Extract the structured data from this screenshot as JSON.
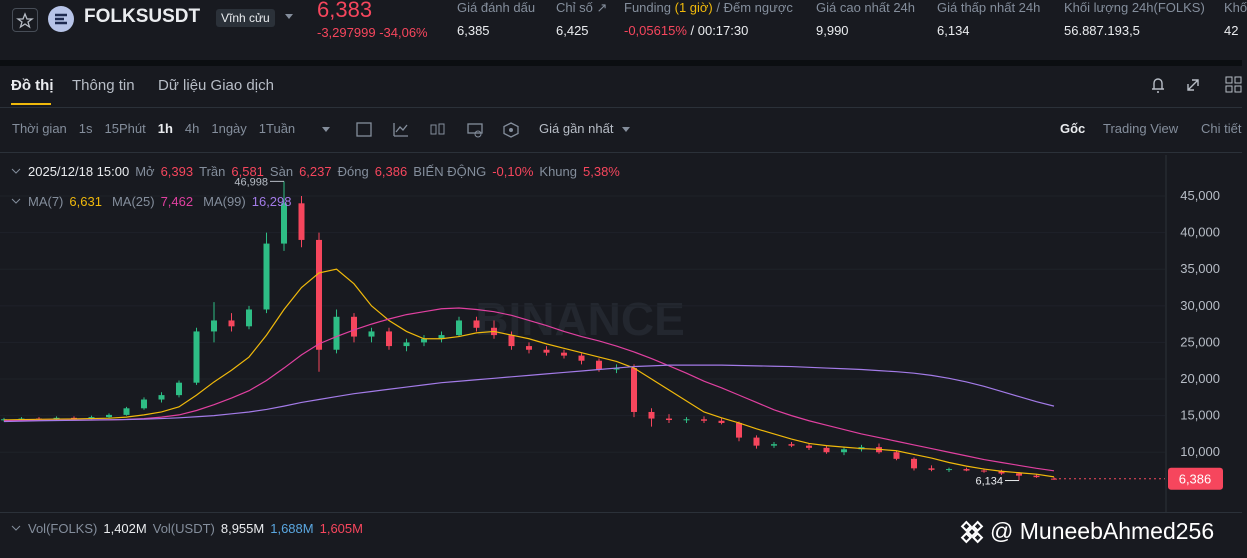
{
  "header": {
    "symbol": "FOLKSUSDT",
    "contract": "Vĩnh cửu",
    "price": "6,383",
    "change": "-3,297999",
    "change_pct": "-34,06%",
    "stats": [
      {
        "label": "Giá đánh dấu",
        "value": "6,385"
      },
      {
        "label": "Chỉ số ↗",
        "value": "6,425"
      },
      {
        "label": "Giá cao nhất 24h",
        "value": "9,990"
      },
      {
        "label": "Giá thấp nhất 24h",
        "value": "6,134"
      },
      {
        "label": "Khối lượng 24h(FOLKS)",
        "value": "56.887.193,5"
      },
      {
        "label": "Khố",
        "value": "42"
      }
    ],
    "funding": {
      "label": "Funding",
      "highlight": "(1 giờ)",
      "label_rest": "/ Đếm ngược",
      "rate": "-0,05615%",
      "countdown": "/ 00:17:30"
    }
  },
  "tabs": [
    "Đồ thị",
    "Thông tin",
    "Dữ liệu Giao dịch"
  ],
  "toolbar": {
    "intervals": [
      "Thời gian",
      "1s",
      "15Phút",
      "1h",
      "4h",
      "1ngày",
      "1Tuần"
    ],
    "price_type": "Giá gần nhất",
    "views": [
      "Gốc",
      "Trading View",
      "Chi tiết"
    ]
  },
  "info": {
    "date": "2025/12/18 15:00",
    "fields": [
      {
        "label": "Mở",
        "value": "6,393"
      },
      {
        "label": "Trần",
        "value": "6,581"
      },
      {
        "label": "Sàn",
        "value": "6,237"
      },
      {
        "label": "Đóng",
        "value": "6,386"
      },
      {
        "label": "BIẾN ĐỘNG",
        "value": "-0,10%"
      },
      {
        "label": "Khung",
        "value": "5,38%"
      }
    ]
  },
  "volume": {
    "label1": "Vol(FOLKS)",
    "value1": "1,402M",
    "label2": "Vol(USDT)",
    "value2": "8,955M",
    "value3": "1,688M",
    "value4": "1,605M"
  },
  "watermark": "@ MuneebAhmed256",
  "logo_watermark": "BINANCE",
  "chart_data": {
    "type": "candlestick",
    "ylim": [
      1700,
      50600
    ],
    "yticks": [
      {
        "value": 10000,
        "label": "10,000"
      },
      {
        "value": 15000,
        "label": "15,000"
      },
      {
        "value": 20000,
        "label": "20,000"
      },
      {
        "value": 25000,
        "label": "25,000"
      },
      {
        "value": 30000,
        "label": "30,000"
      },
      {
        "value": 35000,
        "label": "35,000"
      },
      {
        "value": 40000,
        "label": "40,000"
      },
      {
        "value": 45000,
        "label": "45,000"
      }
    ],
    "up_color": "#2ebd85",
    "down_color": "#f6465d",
    "candles": [
      [
        14400,
        14700,
        14200,
        14500
      ],
      [
        14500,
        14800,
        14300,
        14600
      ],
      [
        14600,
        14800,
        14400,
        14500
      ],
      [
        14500,
        14900,
        14400,
        14700
      ],
      [
        14700,
        14900,
        14500,
        14600
      ],
      [
        14600,
        15000,
        14500,
        14800
      ],
      [
        14800,
        15300,
        14600,
        15100
      ],
      [
        15100,
        16200,
        15000,
        16000
      ],
      [
        16000,
        17500,
        15800,
        17200
      ],
      [
        17200,
        18200,
        16800,
        17800
      ],
      [
        17800,
        19800,
        17500,
        19500
      ],
      [
        19500,
        27000,
        19200,
        26500
      ],
      [
        26500,
        30500,
        25000,
        28000
      ],
      [
        28000,
        29000,
        26500,
        27200
      ],
      [
        27200,
        30000,
        26800,
        29500
      ],
      [
        29500,
        40000,
        29000,
        38500
      ],
      [
        38500,
        46998,
        37500,
        44000
      ],
      [
        44000,
        45000,
        38000,
        39000
      ],
      [
        39000,
        40000,
        21000,
        24000
      ],
      [
        24000,
        29500,
        23500,
        28500
      ],
      [
        28500,
        29000,
        25000,
        25800
      ],
      [
        25800,
        27000,
        25000,
        26500
      ],
      [
        26500,
        27000,
        24000,
        24500
      ],
      [
        24500,
        25500,
        23800,
        25000
      ],
      [
        25000,
        26000,
        24500,
        25500
      ],
      [
        25500,
        26500,
        25000,
        26000
      ],
      [
        26000,
        28500,
        25800,
        28000
      ],
      [
        28000,
        28500,
        26500,
        27000
      ],
      [
        27000,
        28000,
        25500,
        26000
      ],
      [
        26000,
        26500,
        24000,
        24500
      ],
      [
        24500,
        25000,
        23500,
        24000
      ],
      [
        24000,
        24500,
        23200,
        23600
      ],
      [
        23600,
        24000,
        22800,
        23200
      ],
      [
        23200,
        23500,
        22000,
        22500
      ],
      [
        22500,
        22800,
        21000,
        21300
      ],
      [
        21300,
        22000,
        20800,
        21500
      ],
      [
        21500,
        22000,
        14800,
        15500
      ],
      [
        15500,
        16000,
        13500,
        14600
      ],
      [
        14600,
        15200,
        14000,
        14400
      ],
      [
        14400,
        14800,
        14000,
        14500
      ],
      [
        14500,
        14900,
        14000,
        14300
      ],
      [
        14300,
        14600,
        13800,
        14000
      ],
      [
        14000,
        14200,
        11500,
        12000
      ],
      [
        12000,
        12300,
        10500,
        10900
      ],
      [
        10900,
        11400,
        10600,
        11100
      ],
      [
        11100,
        11400,
        10700,
        10900
      ],
      [
        10900,
        11200,
        10300,
        10600
      ],
      [
        10600,
        10900,
        9800,
        10000
      ],
      [
        10000,
        10700,
        9600,
        10400
      ],
      [
        10400,
        11000,
        10100,
        10700
      ],
      [
        10700,
        11200,
        9800,
        10000
      ],
      [
        10000,
        10200,
        8900,
        9100
      ],
      [
        9100,
        9300,
        7500,
        7800
      ],
      [
        7800,
        8200,
        7400,
        7600
      ],
      [
        7600,
        7900,
        7300,
        7700
      ],
      [
        7700,
        7900,
        7400,
        7500
      ],
      [
        7500,
        7800,
        7200,
        7400
      ],
      [
        7400,
        7600,
        6900,
        7100
      ],
      [
        7100,
        7300,
        6134,
        6800
      ],
      [
        6800,
        7000,
        6500,
        6600
      ],
      [
        6393,
        6581,
        6237,
        6386
      ]
    ],
    "series": [
      {
        "name": "MA(7)",
        "value_label": "6,631",
        "color": "#f0b90b",
        "values": [
          14400,
          14450,
          14500,
          14520,
          14550,
          14600,
          14650,
          14800,
          15100,
          15500,
          16200,
          17800,
          19600,
          21200,
          23000,
          26000,
          29500,
          32500,
          34500,
          35000,
          33000,
          30000,
          28000,
          26500,
          25500,
          25500,
          25800,
          26300,
          26500,
          26000,
          25500,
          24800,
          24200,
          23600,
          23000,
          22400,
          21500,
          20000,
          18500,
          17000,
          15500,
          14700,
          14000,
          13200,
          12500,
          11800,
          11200,
          10900,
          10700,
          10500,
          10400,
          10200,
          9700,
          9200,
          8600,
          8100,
          7700,
          7400,
          7200,
          7000,
          6631
        ]
      },
      {
        "name": "MA(25)",
        "value_label": "7,462",
        "color": "#e040a0",
        "values": [
          14300,
          14320,
          14340,
          14360,
          14380,
          14400,
          14420,
          14480,
          14600,
          14800,
          15100,
          15700,
          16500,
          17400,
          18400,
          19800,
          21500,
          23300,
          24800,
          25800,
          26700,
          27500,
          28200,
          28800,
          29200,
          29600,
          29700,
          29500,
          29200,
          28700,
          28000,
          27300,
          26500,
          25800,
          25200,
          24500,
          23700,
          22800,
          21800,
          20800,
          19700,
          18800,
          17800,
          16800,
          15800,
          15000,
          14300,
          13700,
          13100,
          12500,
          12000,
          11500,
          11000,
          10500,
          10000,
          9500,
          9000,
          8600,
          8200,
          7800,
          7462
        ]
      },
      {
        "name": "MA(99)",
        "value_label": "16,298",
        "color": "#a37be8",
        "values": [
          14200,
          14250,
          14300,
          14330,
          14360,
          14400,
          14430,
          14470,
          14520,
          14600,
          14700,
          14850,
          15000,
          15250,
          15500,
          15850,
          16300,
          16800,
          17200,
          17600,
          18000,
          18300,
          18600,
          18900,
          19200,
          19500,
          19700,
          19900,
          20100,
          20300,
          20500,
          20700,
          20900,
          21100,
          21300,
          21500,
          21700,
          21800,
          21900,
          21900,
          21900,
          21900,
          21850,
          21800,
          21750,
          21700,
          21600,
          21500,
          21400,
          21300,
          21150,
          21000,
          20800,
          20500,
          20100,
          19600,
          19000,
          18300,
          17600,
          16900,
          16298
        ]
      }
    ],
    "current_price": {
      "value": 6386,
      "label": "6,386"
    },
    "annotations": {
      "high": "46,998",
      "low": "6,134"
    }
  }
}
